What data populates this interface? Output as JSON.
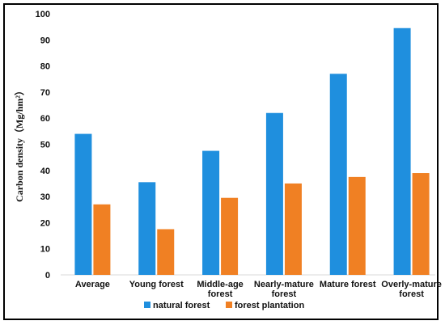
{
  "chart_data": {
    "type": "bar",
    "title": "",
    "xlabel": "",
    "ylabel": "Carbon density（Mg/hm²）",
    "ylim": [
      0,
      100
    ],
    "yticks": [
      0,
      10,
      20,
      30,
      40,
      50,
      60,
      70,
      80,
      90,
      100
    ],
    "grid": false,
    "legend_position": "bottom",
    "categories": [
      "Average",
      "Young forest",
      "Middle-age forest",
      "Nearly-mature forest",
      "Mature forest",
      "Overly-mature forest"
    ],
    "category_lines": [
      [
        "Average"
      ],
      [
        "Young forest"
      ],
      [
        "Middle-age",
        "forest"
      ],
      [
        "Nearly-mature",
        "forest"
      ],
      [
        "Mature forest"
      ],
      [
        "Overly-mature",
        "forest"
      ]
    ],
    "series": [
      {
        "name": "natural forest",
        "color": "#1f8fde",
        "values": [
          54,
          35.5,
          47.5,
          62,
          77,
          94.5
        ]
      },
      {
        "name": "forest plantation",
        "color": "#f08023",
        "values": [
          27,
          17.5,
          29.5,
          35,
          37.5,
          39
        ]
      }
    ]
  }
}
